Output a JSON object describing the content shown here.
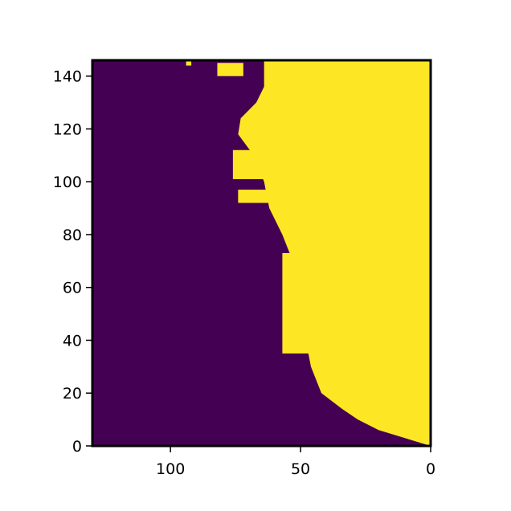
{
  "chart_data": {
    "type": "heatmap",
    "title": "",
    "xlabel": "",
    "ylabel": "",
    "xlim": [
      130,
      0
    ],
    "ylim": [
      0,
      146
    ],
    "x_inverted": true,
    "x_ticks": [
      100,
      50,
      0
    ],
    "y_ticks": [
      0,
      20,
      40,
      60,
      80,
      100,
      120,
      140
    ],
    "colormap": "viridis",
    "values_present": [
      0,
      1
    ],
    "colors": {
      "0": "#440154",
      "1": "#fde725",
      "frame": "#000000"
    },
    "land_mask": {
      "description": "binary mask, 1 = yellow region",
      "main_region_x_at_y": [
        [
          0,
          0
        ],
        [
          6,
          20
        ],
        [
          10,
          28
        ],
        [
          14,
          34
        ],
        [
          20,
          42
        ],
        [
          30,
          46
        ],
        [
          40,
          48
        ],
        [
          50,
          50
        ],
        [
          60,
          51
        ],
        [
          70,
          53
        ],
        [
          80,
          57
        ],
        [
          90,
          62
        ],
        [
          100,
          64
        ],
        [
          110,
          68
        ],
        [
          118,
          74
        ],
        [
          124,
          73
        ],
        [
          130,
          67
        ],
        [
          136,
          64
        ],
        [
          146,
          64
        ]
      ],
      "islands": [
        {
          "x": [
            61,
            74
          ],
          "y": [
            92,
            97
          ]
        },
        {
          "x": [
            63,
            76
          ],
          "y": [
            101,
            112
          ]
        },
        {
          "x": [
            72,
            82
          ],
          "y": [
            140,
            145
          ]
        },
        {
          "x": [
            92,
            94
          ],
          "y": [
            144,
            146
          ]
        },
        {
          "x": [
            45,
            57
          ],
          "y": [
            35,
            73
          ]
        }
      ]
    }
  }
}
